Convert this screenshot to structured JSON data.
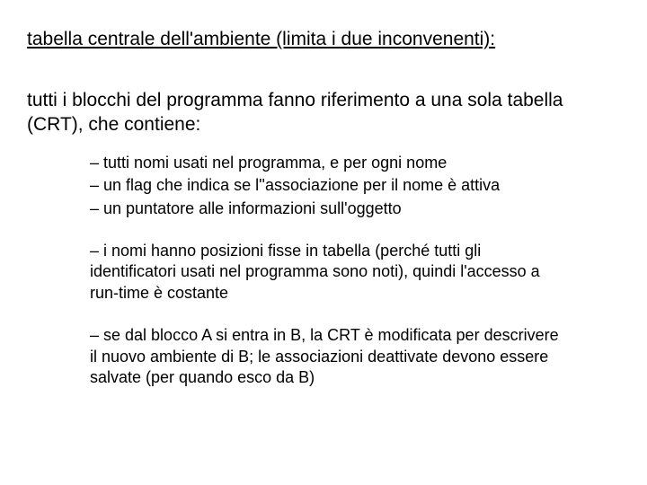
{
  "title": "tabella centrale dell'ambiente (limita i due inconvenenti):",
  "intro": "tutti i blocchi del programma fanno riferimento a una sola tabella (CRT), che contiene:",
  "items_a": [
    "– tutti nomi usati nel programma, e per ogni nome",
    "– un flag che indica se l''associazione per il nome è attiva",
    "– un puntatore alle informazioni sull'oggetto"
  ],
  "items_b": [
    "– i nomi hanno posizioni fisse in tabella (perché tutti gli identificatori usati nel programma sono noti), quindi l'accesso a run-time è costante"
  ],
  "items_c": [
    "– se dal blocco A si entra in B, la CRT è modificata per descrivere il nuovo ambiente di B; le associazioni deattivate devono essere salvate (per quando esco da B)"
  ],
  "style": {
    "background_color": "#ffffff",
    "text_color": "#000000",
    "title_fontsize": 21,
    "intro_fontsize": 21,
    "bullet_fontsize": 18,
    "font_family": "Arial"
  }
}
